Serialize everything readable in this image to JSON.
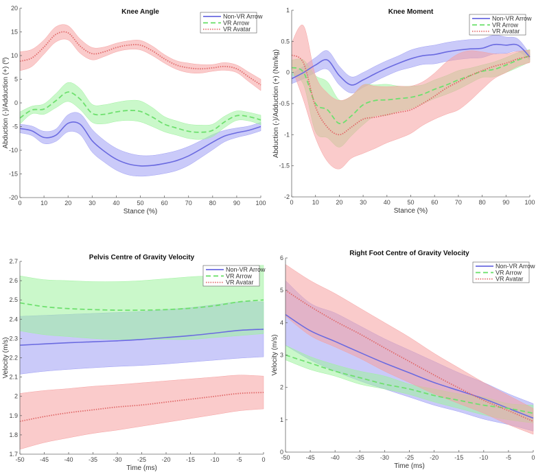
{
  "colors": {
    "non_vr_arrow": {
      "line": "#6a6ae0",
      "band": "#9e9ef4"
    },
    "vr_arrow": {
      "line": "#6ee06e",
      "band": "#9ef29e"
    },
    "vr_avatar": {
      "line": "#e06868",
      "band": "#f6a0a0"
    }
  },
  "chart_data": [
    {
      "type": "line",
      "title": "Knee Angle",
      "xlabel": "Stance (%)",
      "ylabel": "Abduction (-)/Adduction (+) (º)",
      "xlim": [
        0,
        100
      ],
      "ylim": [
        -20,
        20
      ],
      "xticks": [
        0,
        10,
        20,
        30,
        40,
        50,
        60,
        70,
        80,
        90,
        100
      ],
      "yticks": [
        -20,
        -15,
        -10,
        -5,
        0,
        5,
        10,
        15,
        20
      ],
      "legend": "top-right",
      "x": [
        0,
        5,
        10,
        15,
        20,
        25,
        30,
        35,
        40,
        45,
        50,
        55,
        60,
        65,
        70,
        75,
        80,
        85,
        90,
        95,
        100
      ],
      "series": [
        {
          "name": "Non-VR Arrow",
          "key": "non_vr_arrow",
          "style": "solid",
          "mean": [
            -5.4,
            -5.9,
            -7.3,
            -6.8,
            -4.3,
            -4.5,
            -8.0,
            -10.2,
            -11.9,
            -12.9,
            -13.3,
            -13.2,
            -12.8,
            -12.2,
            -11.2,
            -9.8,
            -8.3,
            -7.0,
            -6.3,
            -5.8,
            -5.0
          ],
          "sd": [
            0.9,
            1.0,
            1.3,
            1.3,
            1.8,
            2.2,
            2.4,
            2.3,
            2.3,
            2.3,
            2.2,
            2.1,
            2.1,
            2.1,
            2.0,
            1.8,
            1.6,
            1.2,
            1.0,
            0.9,
            0.9
          ]
        },
        {
          "name": "VR Arrow",
          "key": "vr_arrow",
          "style": "dashed",
          "mean": [
            -3.2,
            -1.5,
            -1.3,
            0.5,
            2.3,
            0.8,
            -2.2,
            -2.4,
            -1.9,
            -1.6,
            -1.8,
            -3.0,
            -4.5,
            -5.3,
            -6.0,
            -6.2,
            -5.8,
            -4.0,
            -2.7,
            -2.9,
            -3.6
          ],
          "sd": [
            1.3,
            0.8,
            1.1,
            1.5,
            2.0,
            2.2,
            1.9,
            2.0,
            2.0,
            2.1,
            2.2,
            2.0,
            1.6,
            1.5,
            1.5,
            1.5,
            1.3,
            1.2,
            1.0,
            0.9,
            1.0
          ]
        },
        {
          "name": "VR Avatar",
          "key": "vr_avatar",
          "style": "dotted",
          "mean": [
            8.8,
            9.5,
            11.8,
            14.5,
            14.8,
            12.0,
            10.4,
            10.8,
            11.7,
            12.2,
            12.2,
            11.0,
            9.3,
            8.0,
            7.4,
            7.2,
            7.4,
            7.7,
            7.2,
            5.5,
            3.8
          ],
          "sd": [
            2.0,
            1.8,
            1.5,
            1.6,
            1.5,
            1.5,
            1.3,
            1.0,
            0.9,
            0.9,
            1.0,
            1.0,
            0.9,
            0.9,
            1.0,
            0.9,
            0.7,
            0.8,
            0.8,
            1.0,
            1.2
          ]
        }
      ]
    },
    {
      "type": "line",
      "title": "Knee Moment",
      "xlabel": "Stance (%)",
      "ylabel": "Abduction (-)/Adduction (+) (Nm/kg)",
      "xlim": [
        0,
        100
      ],
      "ylim": [
        -2,
        1
      ],
      "xticks": [
        0,
        10,
        20,
        30,
        40,
        50,
        60,
        70,
        80,
        90,
        100
      ],
      "yticks": [
        -2,
        -1.5,
        -1,
        -0.5,
        0,
        0.5,
        1
      ],
      "legend": "top-right",
      "x": [
        0,
        5,
        10,
        15,
        20,
        25,
        30,
        35,
        40,
        45,
        50,
        55,
        60,
        65,
        70,
        75,
        80,
        85,
        90,
        95,
        100
      ],
      "series": [
        {
          "name": "Non-VR Arrow",
          "key": "non_vr_arrow",
          "style": "solid",
          "mean": [
            -0.1,
            0.0,
            0.12,
            0.2,
            -0.05,
            -0.2,
            -0.12,
            -0.02,
            0.07,
            0.15,
            0.22,
            0.27,
            0.29,
            0.33,
            0.36,
            0.38,
            0.39,
            0.45,
            0.44,
            0.44,
            0.25
          ],
          "sd": [
            0.08,
            0.1,
            0.12,
            0.15,
            0.15,
            0.13,
            0.12,
            0.12,
            0.12,
            0.12,
            0.14,
            0.14,
            0.15,
            0.15,
            0.15,
            0.15,
            0.15,
            0.15,
            0.13,
            0.1,
            0.05
          ]
        },
        {
          "name": "VR Arrow",
          "key": "vr_arrow",
          "style": "dashed",
          "mean": [
            0.08,
            0.0,
            -0.5,
            -0.6,
            -0.82,
            -0.7,
            -0.52,
            -0.45,
            -0.44,
            -0.42,
            -0.4,
            -0.35,
            -0.27,
            -0.2,
            -0.12,
            -0.05,
            0.02,
            0.05,
            0.12,
            0.2,
            0.27
          ],
          "sd": [
            0.12,
            0.2,
            0.45,
            0.45,
            0.38,
            0.32,
            0.32,
            0.25,
            0.25,
            0.2,
            0.18,
            0.15,
            0.15,
            0.15,
            0.15,
            0.12,
            0.1,
            0.12,
            0.12,
            0.12,
            0.1
          ]
        },
        {
          "name": "VR Avatar",
          "key": "vr_avatar",
          "style": "dotted",
          "mean": [
            0.28,
            0.15,
            -0.55,
            -0.88,
            -1.0,
            -0.88,
            -0.75,
            -0.72,
            -0.68,
            -0.64,
            -0.6,
            -0.5,
            -0.38,
            -0.25,
            -0.15,
            -0.05,
            0.03,
            0.1,
            0.15,
            0.22,
            0.26
          ],
          "sd": [
            0.2,
            0.6,
            0.5,
            0.55,
            0.55,
            0.5,
            0.55,
            0.5,
            0.45,
            0.42,
            0.38,
            0.35,
            0.37,
            0.42,
            0.45,
            0.4,
            0.3,
            0.2,
            0.15,
            0.12,
            0.1
          ]
        }
      ]
    },
    {
      "type": "line",
      "title": "Pelvis Centre of Gravity Velocity",
      "xlabel": "Time (ms)",
      "ylabel": "Velocity (m/s)",
      "xlim": [
        -50,
        0
      ],
      "ylim": [
        1.7,
        2.7
      ],
      "xticks": [
        -50,
        -45,
        -40,
        -35,
        -30,
        -25,
        -20,
        -15,
        -10,
        -5,
        0
      ],
      "yticks": [
        1.7,
        1.8,
        1.9,
        2,
        2.1,
        2.2,
        2.3,
        2.4,
        2.5,
        2.6,
        2.7
      ],
      "legend": "top-right",
      "x": [
        -50,
        -45,
        -40,
        -35,
        -30,
        -25,
        -20,
        -15,
        -10,
        -5,
        0
      ],
      "series": [
        {
          "name": "Non-VR Arrow",
          "key": "non_vr_arrow",
          "style": "solid",
          "mean": [
            2.265,
            2.272,
            2.278,
            2.283,
            2.288,
            2.295,
            2.305,
            2.315,
            2.328,
            2.342,
            2.348
          ],
          "lower": [
            2.115,
            2.13,
            2.14,
            2.148,
            2.155,
            2.16,
            2.168,
            2.178,
            2.188,
            2.198,
            2.205
          ],
          "upper": [
            2.415,
            2.42,
            2.425,
            2.43,
            2.435,
            2.44,
            2.45,
            2.46,
            2.475,
            2.49,
            2.49
          ]
        },
        {
          "name": "VR Arrow",
          "key": "vr_arrow",
          "style": "dashed",
          "mean": [
            2.485,
            2.465,
            2.455,
            2.45,
            2.447,
            2.447,
            2.45,
            2.457,
            2.47,
            2.49,
            2.5
          ],
          "lower": [
            2.34,
            2.32,
            2.31,
            2.3,
            2.295,
            2.295,
            2.295,
            2.295,
            2.305,
            2.315,
            2.325
          ],
          "upper": [
            2.625,
            2.605,
            2.6,
            2.595,
            2.595,
            2.6,
            2.61,
            2.62,
            2.63,
            2.67,
            2.68
          ]
        },
        {
          "name": "VR Avatar",
          "key": "vr_avatar",
          "style": "dotted",
          "mean": [
            1.87,
            1.895,
            1.915,
            1.93,
            1.945,
            1.955,
            1.97,
            1.985,
            2.0,
            2.015,
            2.02
          ],
          "lower": [
            1.725,
            1.76,
            1.785,
            1.808,
            1.825,
            1.845,
            1.865,
            1.885,
            1.905,
            1.925,
            1.935
          ],
          "upper": [
            2.015,
            2.03,
            2.04,
            2.052,
            2.06,
            2.07,
            2.08,
            2.09,
            2.1,
            2.11,
            2.105
          ]
        }
      ]
    },
    {
      "type": "line",
      "title": "Right Foot Centre of Gravity Velocity",
      "xlabel": "Time (ms)",
      "ylabel": "Velocity (m/s)",
      "xlim": [
        -50,
        0
      ],
      "ylim": [
        0,
        6
      ],
      "xticks": [
        -50,
        -45,
        -40,
        -35,
        -30,
        -25,
        -20,
        -15,
        -10,
        -5,
        0
      ],
      "yticks": [
        0,
        1,
        2,
        3,
        4,
        5,
        6
      ],
      "legend": "top-right",
      "x": [
        -50,
        -45,
        -40,
        -35,
        -30,
        -25,
        -20,
        -15,
        -10,
        -5,
        0
      ],
      "series": [
        {
          "name": "Non-VR Arrow",
          "key": "non_vr_arrow",
          "style": "solid",
          "mean": [
            4.25,
            3.75,
            3.42,
            3.08,
            2.75,
            2.45,
            2.15,
            1.9,
            1.65,
            1.35,
            1.05
          ],
          "lower": [
            3.3,
            2.85,
            2.5,
            2.2,
            1.95,
            1.7,
            1.45,
            1.25,
            1.02,
            0.85,
            0.65
          ],
          "upper": [
            5.3,
            4.6,
            4.3,
            3.9,
            3.5,
            3.15,
            2.8,
            2.45,
            2.15,
            1.8,
            1.5
          ]
        },
        {
          "name": "VR Arrow",
          "key": "vr_arrow",
          "style": "dashed",
          "mean": [
            3.0,
            2.75,
            2.5,
            2.3,
            2.1,
            1.95,
            1.75,
            1.6,
            1.45,
            1.35,
            1.2
          ],
          "lower": [
            2.85,
            2.55,
            2.35,
            2.1,
            1.95,
            1.78,
            1.55,
            1.35,
            1.15,
            1.0,
            0.9
          ],
          "upper": [
            3.3,
            2.95,
            2.7,
            2.5,
            2.35,
            2.1,
            1.95,
            1.8,
            1.7,
            1.5,
            1.45
          ]
        },
        {
          "name": "VR Avatar",
          "key": "vr_avatar",
          "style": "dotted",
          "mean": [
            5.0,
            4.5,
            4.05,
            3.65,
            3.22,
            2.8,
            2.38,
            1.98,
            1.6,
            1.28,
            0.95
          ],
          "lower": [
            4.2,
            3.6,
            3.25,
            2.9,
            2.5,
            2.15,
            1.8,
            1.5,
            1.2,
            0.85,
            0.55
          ],
          "upper": [
            5.8,
            5.3,
            4.9,
            4.45,
            4.0,
            3.55,
            3.05,
            2.6,
            2.15,
            1.75,
            1.35
          ]
        }
      ]
    }
  ]
}
